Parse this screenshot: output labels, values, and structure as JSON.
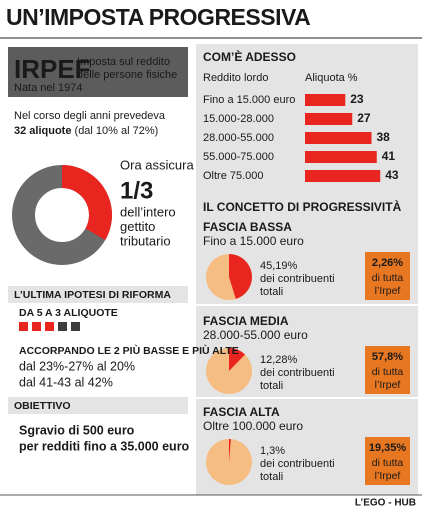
{
  "title": "UN’IMPOSTA PROGRESSIVA",
  "irpef": {
    "name": "IRPEF",
    "description": [
      "Imposta sul reddito",
      "delle persone fisiche"
    ],
    "born": "Nata nel 1974"
  },
  "history": {
    "line": "Nel corso degli anni prevedeva",
    "strong": "32 aliquote",
    "rest": "(dal 10% al 72%)"
  },
  "reform": {
    "heading": "L’ULTIMA IPOTESI DI RIFORMA",
    "subheading": "DA 5 A 3 ALIQUOTE",
    "merge_heading": "ACCORPANDO LE 2 PIÙ BASSE E PIÙ ALTE",
    "merge_lines": [
      "dal 23%-27% al 20%",
      "dal 41-43 al 42%"
    ]
  },
  "goal": {
    "heading": "OBIETTIVO",
    "lines": [
      "Sgravio di 500 euro",
      "per redditi fino a 35.000 euro"
    ]
  },
  "progressivity_title": "IL CONCETTO DI PROGRESSIVITÀ",
  "footer": "L’EGO - HUB",
  "chart_data": [
    {
      "type": "donut",
      "values": [
        33.33
      ],
      "value_labels": [
        "1/3"
      ],
      "color": "#e8251f",
      "annotations": [
        "Ora assicura",
        "dell’intero",
        "gettito",
        "tributario"
      ]
    },
    {
      "type": "bar",
      "title": "COM’È ADESSO",
      "x_label": "Reddito lordo",
      "y_label": "Aliquota %",
      "categories": [
        "Fino a 15.000 euro",
        "15.000-28.000",
        "28.000-55.000",
        "55.000-75.000",
        "Oltre 75.000"
      ],
      "values": [
        23,
        27,
        38,
        41,
        43
      ],
      "color": "#e8251f"
    },
    {
      "type": "pie",
      "title": "FASCIA BASSA",
      "subtitle": "Fino a 15.000 euro",
      "values": [
        45.19
      ],
      "value_labels": [
        "45,19%"
      ],
      "annotations": [
        "dei contribuenti",
        "totali"
      ],
      "color": "#e8251f",
      "irpef_share": {
        "value": 2.26,
        "label": "2,26%"
      },
      "irpef_share_text": [
        "di tutta",
        "l’Irpef"
      ]
    },
    {
      "type": "pie",
      "title": "FASCIA MEDIA",
      "subtitle": "28.000-55.000 euro",
      "values": [
        12.28
      ],
      "value_labels": [
        "12,28%"
      ],
      "annotations": [
        "dei contribuenti",
        "totali"
      ],
      "color": "#e8251f",
      "irpef_share": {
        "value": 57.8,
        "label": "57,8%"
      },
      "irpef_share_text": [
        "di tutta",
        "l’Irpef"
      ]
    },
    {
      "type": "pie",
      "title": "FASCIA ALTA",
      "subtitle": "Oltre 100.000 euro",
      "values": [
        1.3
      ],
      "value_labels": [
        "1,3%"
      ],
      "annotations": [
        "dei contribuenti",
        "totali"
      ],
      "color": "#e8251f",
      "irpef_share": {
        "value": 19.35,
        "label": "19,35%"
      },
      "irpef_share_text": [
        "di tutta",
        "l’Irpef"
      ]
    }
  ]
}
